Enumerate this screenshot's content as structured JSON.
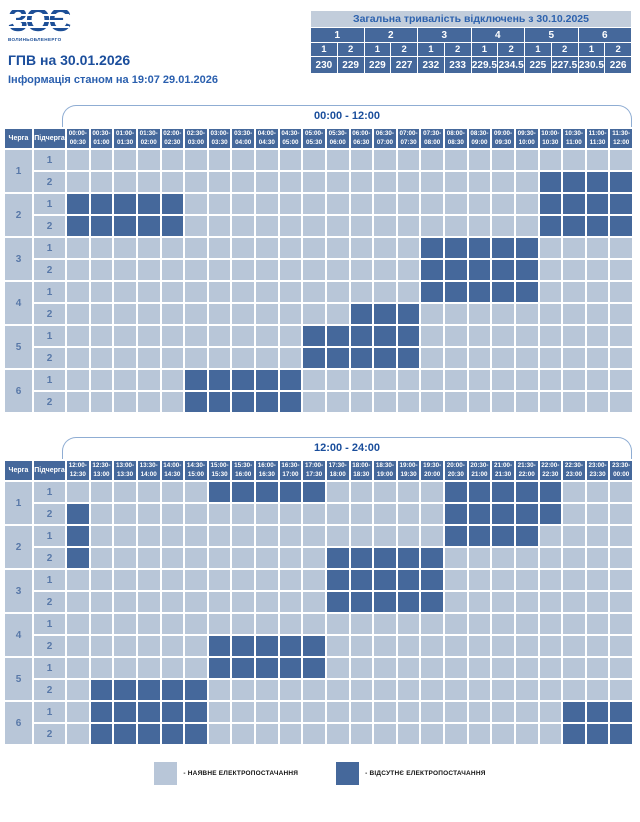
{
  "logo": {
    "mark": "ЗОЄ",
    "name": "ВОЛИНЬОБЛЕНЕРГО"
  },
  "page": {
    "title": "ГПВ на 30.01.2026",
    "subtitle": "Інформація станом на 19:07 29.01.2026"
  },
  "colors": {
    "available": "#b8c6d8",
    "unavailable": "#45689b",
    "header_bg": "#45689b",
    "accent_text": "#1a4e9c",
    "summary_header_bg": "#c2cddb"
  },
  "summary": {
    "title": "Загальна тривалість відключень з 30.10.2025",
    "groups": [
      "1",
      "2",
      "3",
      "4",
      "5",
      "6"
    ],
    "subgroups": [
      "1",
      "2",
      "1",
      "2",
      "1",
      "2",
      "1",
      "2",
      "1",
      "2",
      "1",
      "2"
    ],
    "values": [
      "230",
      "229",
      "229",
      "227",
      "232",
      "233",
      "229.5",
      "234.5",
      "225",
      "227.5",
      "230.5",
      "226"
    ]
  },
  "schedule": {
    "row_header_1": "Черга",
    "row_header_2": "Підчерга",
    "tables": [
      {
        "tab": "00:00 - 12:00",
        "slots": [
          "00:00-00:30",
          "00:30-01:00",
          "01:00-01:30",
          "01:30-02:00",
          "02:00-02:30",
          "02:30-03:00",
          "03:00-03:30",
          "03:30-04:00",
          "04:00-04:30",
          "04:30-05:00",
          "05:00-05:30",
          "05:30-06:00",
          "06:00-06:30",
          "06:30-07:00",
          "07:00-07:30",
          "07:30-08:00",
          "08:00-08:30",
          "08:30-09:00",
          "09:00-09:30",
          "09:30-10:00",
          "10:00-10:30",
          "10:30-11:00",
          "11:00-11:30",
          "11:30-12:00"
        ],
        "groups": [
          {
            "cherga": "1",
            "rows": [
              {
                "pid": "1",
                "off": []
              },
              {
                "pid": "2",
                "off": [
                  20,
                  21,
                  22,
                  23
                ]
              }
            ]
          },
          {
            "cherga": "2",
            "rows": [
              {
                "pid": "1",
                "off": [
                  0,
                  1,
                  2,
                  3,
                  4,
                  20,
                  21,
                  22,
                  23
                ]
              },
              {
                "pid": "2",
                "off": [
                  0,
                  1,
                  2,
                  3,
                  4,
                  20,
                  21,
                  22,
                  23
                ]
              }
            ]
          },
          {
            "cherga": "3",
            "rows": [
              {
                "pid": "1",
                "off": [
                  15,
                  16,
                  17,
                  18,
                  19
                ]
              },
              {
                "pid": "2",
                "off": [
                  15,
                  16,
                  17,
                  18,
                  19
                ]
              }
            ]
          },
          {
            "cherga": "4",
            "rows": [
              {
                "pid": "1",
                "off": [
                  15,
                  16,
                  17,
                  18,
                  19
                ]
              },
              {
                "pid": "2",
                "off": [
                  12,
                  13,
                  14
                ]
              }
            ]
          },
          {
            "cherga": "5",
            "rows": [
              {
                "pid": "1",
                "off": [
                  10,
                  11,
                  12,
                  13,
                  14
                ]
              },
              {
                "pid": "2",
                "off": [
                  10,
                  11,
                  12,
                  13,
                  14
                ]
              }
            ]
          },
          {
            "cherga": "6",
            "rows": [
              {
                "pid": "1",
                "off": [
                  5,
                  6,
                  7,
                  8,
                  9
                ]
              },
              {
                "pid": "2",
                "off": [
                  5,
                  6,
                  7,
                  8,
                  9
                ]
              }
            ]
          }
        ]
      },
      {
        "tab": "12:00 - 24:00",
        "slots": [
          "12:00-12:30",
          "12:30-13:00",
          "13:00-13:30",
          "13:30-14:00",
          "14:00-14:30",
          "14:30-15:00",
          "15:00-15:30",
          "15:30-16:00",
          "16:00-16:30",
          "16:30-17:00",
          "17:00-17:30",
          "17:30-18:00",
          "18:00-18:30",
          "18:30-19:00",
          "19:00-19:30",
          "19:30-20:00",
          "20:00-20:30",
          "20:30-21:00",
          "21:00-21:30",
          "21:30-22:00",
          "22:00-22:30",
          "22:30-23:00",
          "23:00-23:30",
          "23:30-00:00"
        ],
        "groups": [
          {
            "cherga": "1",
            "rows": [
              {
                "pid": "1",
                "off": [
                  6,
                  7,
                  8,
                  9,
                  10,
                  16,
                  17,
                  18,
                  19,
                  20
                ]
              },
              {
                "pid": "2",
                "off": [
                  0,
                  16,
                  17,
                  18,
                  19,
                  20
                ]
              }
            ]
          },
          {
            "cherga": "2",
            "rows": [
              {
                "pid": "1",
                "off": [
                  0,
                  16,
                  17,
                  18,
                  19
                ]
              },
              {
                "pid": "2",
                "off": [
                  0,
                  11,
                  12,
                  13,
                  14,
                  15
                ]
              }
            ]
          },
          {
            "cherga": "3",
            "rows": [
              {
                "pid": "1",
                "off": [
                  11,
                  12,
                  13,
                  14,
                  15
                ]
              },
              {
                "pid": "2",
                "off": [
                  11,
                  12,
                  13,
                  14,
                  15
                ]
              }
            ]
          },
          {
            "cherga": "4",
            "rows": [
              {
                "pid": "1",
                "off": []
              },
              {
                "pid": "2",
                "off": [
                  6,
                  7,
                  8,
                  9,
                  10
                ]
              }
            ]
          },
          {
            "cherga": "5",
            "rows": [
              {
                "pid": "1",
                "off": [
                  6,
                  7,
                  8,
                  9,
                  10
                ]
              },
              {
                "pid": "2",
                "off": [
                  1,
                  2,
                  3,
                  4,
                  5
                ]
              }
            ]
          },
          {
            "cherga": "6",
            "rows": [
              {
                "pid": "1",
                "off": [
                  1,
                  2,
                  3,
                  4,
                  5,
                  21,
                  22,
                  23
                ]
              },
              {
                "pid": "2",
                "off": [
                  1,
                  2,
                  3,
                  4,
                  5,
                  21,
                  22,
                  23
                ]
              }
            ]
          }
        ]
      }
    ]
  },
  "legend": {
    "available_label": "- НАЯВНЕ ЕЛЕКТРОПОСТАЧАННЯ",
    "unavailable_label": "- ВІДСУТНЄ ЕЛЕКТРОПОСТАЧАННЯ"
  }
}
